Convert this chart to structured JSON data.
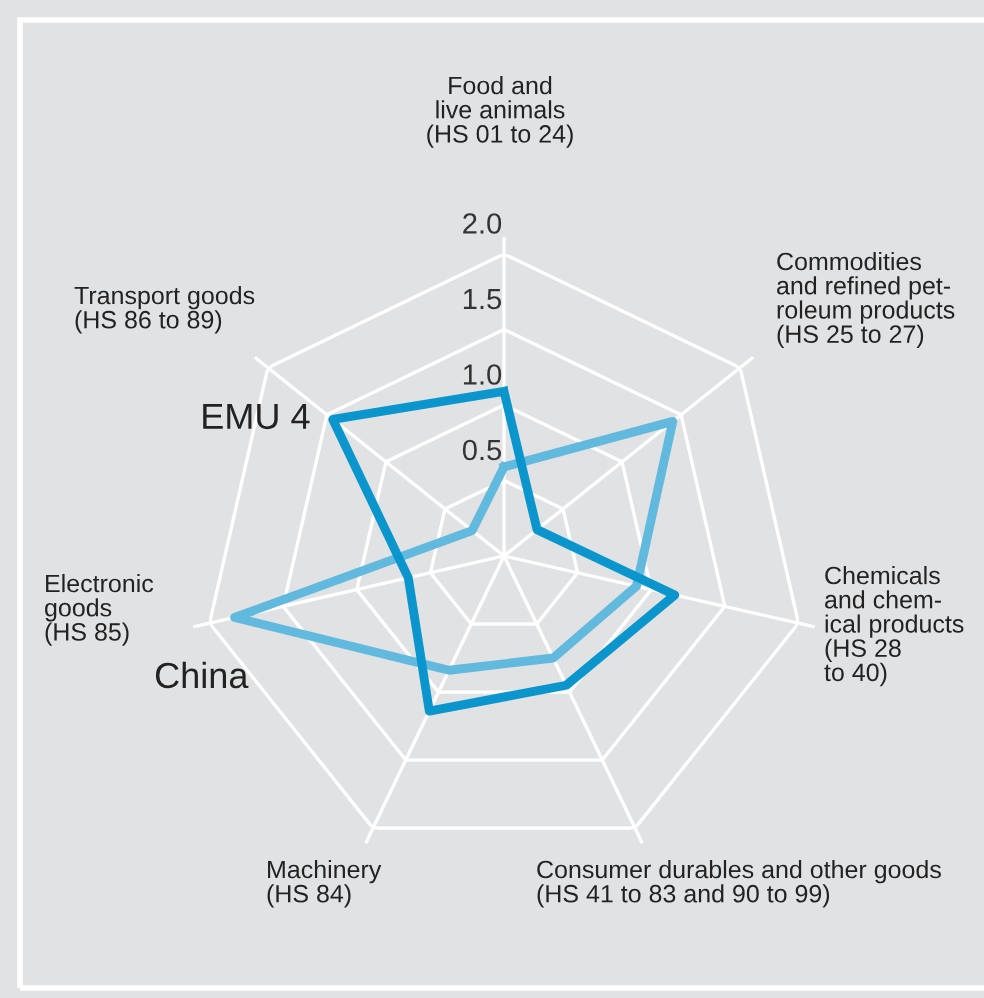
{
  "chart_data": {
    "type": "radar",
    "categories": [
      "Food and\nlive animals\n(HS 01 to 24)",
      "Commodities\nand refined pet-\nroleum products\n(HS 25 to 27)",
      "Chemicals\nand chem-\nical products\n(HS 28\nto 40)",
      "Consumer durables and other goods\n(HS 41 to 83 and 90 to 99)",
      "Machinery\n(HS 84)",
      "Electronic\ngoods\n(HS 85)",
      "Transport goods\n(HS 86 to 89)"
    ],
    "series": [
      {
        "name": "EMU 4",
        "color": "#0a96cc",
        "values": [
          1.09,
          0.28,
          1.16,
          0.95,
          1.14,
          0.65,
          1.45
        ]
      },
      {
        "name": "China",
        "color": "#62b9de",
        "values": [
          0.59,
          1.43,
          0.9,
          0.75,
          0.84,
          1.83,
          0.27
        ]
      }
    ],
    "ylim": [
      0,
      2.0
    ],
    "yticks": [
      {
        "value": 0.5,
        "label": "0.5"
      },
      {
        "value": 1.0,
        "label": "1.0"
      },
      {
        "value": 1.5,
        "label": "1.5"
      },
      {
        "value": 2.0,
        "label": "2.0"
      }
    ],
    "grid": true,
    "legend": false
  }
}
